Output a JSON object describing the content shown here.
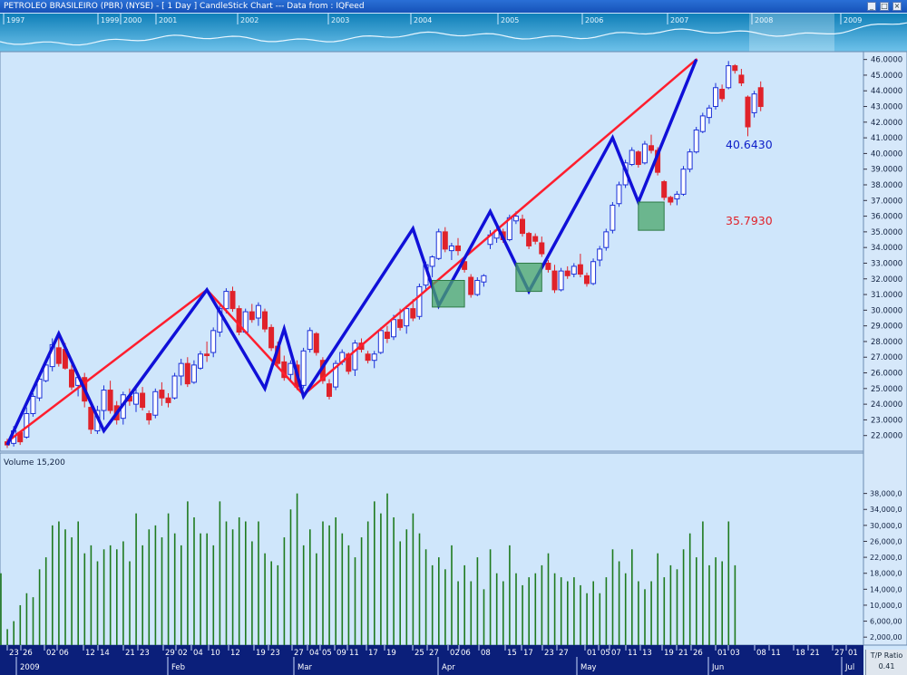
{
  "window": {
    "title": "PETROLEO BRASILEIRO (PBR) (NYSE)  -  [ 1 Day ] CandleStick Chart --- Data from : IQFeed",
    "buttons": [
      "_",
      "□",
      "×"
    ]
  },
  "overview": {
    "year_labels": [
      "1997",
      "1999",
      "2000",
      "2001",
      "2002",
      "2003",
      "2004",
      "2005",
      "2006",
      "2007",
      "2008",
      "2009"
    ],
    "colors": {
      "band_top": "#0f7fb8",
      "band_bottom": "#6fc2ea",
      "line": "#e8f6ff"
    }
  },
  "chart_data": [
    {
      "type": "candlestick",
      "title": "",
      "ylim": [
        21.0,
        46.5
      ],
      "y_ticks": [
        "22.0000",
        "23.0000",
        "24.0000",
        "25.0000",
        "26.0000",
        "27.0000",
        "28.0000",
        "29.0000",
        "30.0000",
        "31.0000",
        "32.0000",
        "33.0000",
        "34.0000",
        "35.0000",
        "36.0000",
        "37.0000",
        "38.0000",
        "39.0000",
        "40.0000",
        "41.0000",
        "42.0000",
        "43.0000",
        "44.0000",
        "45.0000",
        "46.0000"
      ],
      "candles": [
        [
          21.6,
          21.8,
          21.2,
          21.4
        ],
        [
          21.5,
          22.6,
          21.3,
          22.3
        ],
        [
          22.2,
          22.3,
          21.4,
          21.6
        ],
        [
          21.9,
          23.8,
          21.8,
          23.4
        ],
        [
          23.4,
          24.7,
          23.2,
          24.5
        ],
        [
          24.4,
          25.8,
          24.2,
          25.6
        ],
        [
          25.5,
          26.8,
          25.4,
          26.5
        ],
        [
          26.4,
          28.2,
          26.1,
          27.8
        ],
        [
          27.6,
          28.3,
          26.4,
          26.6
        ],
        [
          27.5,
          27.9,
          26.2,
          26.3
        ],
        [
          26.2,
          26.8,
          24.9,
          25.1
        ],
        [
          25.2,
          25.9,
          24.5,
          25.7
        ],
        [
          25.7,
          26.0,
          23.8,
          24.2
        ],
        [
          23.8,
          24.2,
          22.1,
          22.4
        ],
        [
          22.3,
          23.9,
          22.1,
          23.6
        ],
        [
          23.6,
          25.2,
          23.0,
          24.9
        ],
        [
          24.9,
          25.5,
          23.4,
          23.6
        ],
        [
          23.9,
          24.2,
          22.7,
          23.0
        ],
        [
          23.1,
          24.8,
          22.7,
          24.6
        ],
        [
          24.5,
          25.0,
          23.9,
          24.2
        ],
        [
          24.0,
          25.1,
          23.5,
          24.7
        ],
        [
          24.7,
          25.1,
          23.6,
          23.8
        ],
        [
          23.4,
          23.6,
          22.7,
          23.0
        ],
        [
          23.3,
          25.0,
          23.1,
          24.8
        ],
        [
          24.9,
          25.4,
          23.9,
          24.4
        ],
        [
          24.4,
          24.7,
          23.8,
          24.1
        ],
        [
          24.4,
          26.0,
          24.3,
          25.8
        ],
        [
          25.8,
          26.9,
          25.2,
          26.6
        ],
        [
          26.6,
          27.0,
          25.1,
          25.3
        ],
        [
          25.4,
          26.8,
          25.3,
          26.5
        ],
        [
          26.3,
          27.4,
          26.2,
          27.2
        ],
        [
          27.2,
          28.0,
          26.7,
          27.1
        ],
        [
          27.3,
          28.9,
          27.0,
          28.7
        ],
        [
          28.6,
          30.3,
          28.3,
          30.1
        ],
        [
          30.1,
          31.4,
          29.8,
          31.2
        ],
        [
          31.2,
          31.5,
          29.9,
          30.1
        ],
        [
          30.1,
          30.3,
          28.4,
          28.6
        ],
        [
          28.6,
          30.1,
          28.5,
          29.9
        ],
        [
          29.9,
          30.4,
          29.2,
          29.4
        ],
        [
          29.5,
          30.5,
          29.0,
          30.3
        ],
        [
          29.9,
          30.1,
          28.6,
          28.8
        ],
        [
          28.9,
          29.1,
          27.4,
          27.6
        ],
        [
          27.7,
          28.0,
          26.4,
          26.6
        ],
        [
          26.7,
          27.1,
          25.5,
          25.7
        ],
        [
          25.9,
          26.8,
          25.4,
          26.6
        ],
        [
          26.5,
          26.8,
          24.9,
          25.1
        ],
        [
          25.2,
          27.6,
          25.0,
          27.4
        ],
        [
          27.5,
          28.9,
          27.3,
          28.7
        ],
        [
          28.5,
          28.6,
          27.1,
          27.3
        ],
        [
          26.8,
          27.0,
          25.3,
          25.5
        ],
        [
          25.3,
          25.6,
          24.3,
          24.5
        ],
        [
          25.1,
          26.8,
          24.9,
          26.6
        ],
        [
          26.7,
          27.5,
          26.5,
          27.3
        ],
        [
          27.2,
          27.3,
          25.9,
          26.1
        ],
        [
          26.2,
          28.1,
          25.8,
          27.9
        ],
        [
          27.9,
          28.2,
          27.3,
          27.5
        ],
        [
          27.2,
          27.4,
          26.6,
          26.8
        ],
        [
          26.8,
          27.4,
          26.3,
          27.2
        ],
        [
          27.3,
          28.9,
          27.2,
          28.7
        ],
        [
          28.6,
          29.0,
          27.9,
          28.2
        ],
        [
          28.3,
          29.7,
          28.1,
          29.4
        ],
        [
          29.4,
          30.1,
          28.7,
          28.9
        ],
        [
          29.0,
          30.3,
          28.5,
          30.1
        ],
        [
          30.1,
          30.7,
          29.3,
          29.5
        ],
        [
          29.6,
          31.7,
          29.4,
          31.5
        ],
        [
          31.6,
          33.1,
          31.3,
          32.9
        ],
        [
          32.8,
          33.5,
          32.1,
          33.4
        ],
        [
          33.3,
          35.2,
          33.2,
          35.0
        ],
        [
          35.0,
          35.3,
          33.7,
          33.9
        ],
        [
          33.8,
          34.3,
          33.2,
          34.1
        ],
        [
          34.1,
          34.6,
          33.5,
          33.8
        ],
        [
          33.1,
          33.3,
          32.4,
          32.6
        ],
        [
          32.1,
          32.3,
          30.8,
          31.0
        ],
        [
          31.0,
          32.1,
          30.9,
          31.9
        ],
        [
          31.8,
          32.3,
          31.5,
          32.2
        ],
        [
          34.2,
          35.1,
          33.9,
          34.8
        ],
        [
          34.6,
          35.3,
          34.3,
          35.1
        ],
        [
          35.0,
          35.2,
          34.3,
          34.5
        ],
        [
          34.5,
          36.1,
          34.4,
          35.9
        ],
        [
          35.7,
          36.3,
          35.5,
          36.0
        ],
        [
          35.8,
          36.1,
          34.7,
          34.9
        ],
        [
          34.9,
          35.0,
          33.9,
          34.1
        ],
        [
          34.7,
          34.9,
          34.2,
          34.4
        ],
        [
          34.3,
          34.7,
          33.4,
          33.6
        ],
        [
          33.0,
          33.2,
          32.4,
          32.6
        ],
        [
          32.5,
          32.9,
          31.1,
          31.3
        ],
        [
          31.3,
          32.7,
          31.2,
          32.5
        ],
        [
          32.5,
          32.8,
          32.0,
          32.2
        ],
        [
          32.3,
          33.0,
          32.1,
          32.8
        ],
        [
          32.9,
          33.6,
          32.1,
          32.3
        ],
        [
          32.2,
          32.4,
          31.5,
          31.7
        ],
        [
          31.7,
          33.3,
          31.6,
          33.1
        ],
        [
          33.2,
          34.1,
          32.8,
          33.9
        ],
        [
          34.0,
          35.2,
          33.8,
          35.0
        ],
        [
          35.1,
          36.9,
          34.9,
          36.7
        ],
        [
          36.8,
          38.2,
          36.6,
          38.0
        ],
        [
          38.0,
          39.6,
          37.8,
          39.4
        ],
        [
          39.3,
          40.4,
          39.2,
          40.2
        ],
        [
          40.1,
          40.2,
          39.1,
          39.3
        ],
        [
          39.4,
          40.8,
          39.3,
          40.6
        ],
        [
          40.5,
          41.2,
          40.0,
          40.2
        ],
        [
          40.2,
          40.4,
          38.6,
          38.8
        ],
        [
          38.2,
          38.3,
          37.0,
          37.2
        ],
        [
          37.2,
          37.3,
          36.7,
          36.9
        ],
        [
          37.1,
          37.6,
          36.7,
          37.4
        ],
        [
          37.4,
          39.2,
          37.3,
          39.0
        ],
        [
          39.0,
          40.3,
          38.8,
          40.1
        ],
        [
          40.1,
          41.7,
          40.0,
          41.5
        ],
        [
          41.4,
          42.6,
          41.3,
          42.4
        ],
        [
          42.3,
          43.1,
          41.9,
          42.9
        ],
        [
          43.0,
          44.5,
          42.8,
          44.2
        ],
        [
          44.1,
          44.4,
          43.3,
          43.5
        ],
        [
          44.2,
          45.9,
          44.1,
          45.6
        ],
        [
          45.6,
          45.7,
          45.1,
          45.3
        ],
        [
          45.0,
          45.4,
          44.3,
          44.5
        ],
        [
          43.6,
          43.7,
          41.1,
          41.7
        ],
        [
          42.6,
          44.0,
          42.3,
          43.8
        ],
        [
          44.2,
          44.6,
          42.7,
          43.0
        ]
      ],
      "colors": {
        "up": "#1a2fd8",
        "down": "#e0222a",
        "up_fill": "#ffffff"
      },
      "zigzag": {
        "color": "#1010d8",
        "points": [
          [
            0,
            21.4
          ],
          [
            8,
            28.5
          ],
          [
            15,
            22.3
          ],
          [
            31,
            31.3
          ],
          [
            40,
            25.0
          ],
          [
            43,
            28.8
          ],
          [
            46,
            24.5
          ],
          [
            63,
            35.2
          ],
          [
            67,
            30.3
          ],
          [
            75,
            36.3
          ],
          [
            81,
            31.2
          ],
          [
            94,
            41.0
          ],
          [
            98,
            36.9
          ],
          [
            107,
            46.0
          ]
        ]
      },
      "trendlines": {
        "color": "#ff1e2e",
        "segments": [
          [
            [
              0,
              21.6
            ],
            [
              31,
              31.3
            ]
          ],
          [
            [
              31,
              31.3
            ],
            [
              46,
              24.6
            ]
          ],
          [
            [
              46,
              24.6
            ],
            [
              107,
              46.0
            ]
          ]
        ]
      },
      "boxes": [
        {
          "x0": 66,
          "x1": 71,
          "y0": 30.2,
          "y1": 31.9
        },
        {
          "x0": 79,
          "x1": 83,
          "y0": 31.2,
          "y1": 33.0
        },
        {
          "x0": 98,
          "x1": 102,
          "y0": 35.1,
          "y1": 36.9
        }
      ],
      "annotations": [
        {
          "text": "40.6430",
          "color": "#0c1ec8",
          "price": 40.6
        },
        {
          "text": "35.7930",
          "color": "#e0222a",
          "price": 35.75
        }
      ]
    },
    {
      "type": "bar",
      "title": "Volume 15,200",
      "ylim": [
        0,
        42000
      ],
      "y_ticks": [
        "2,000,00",
        "6,000,00",
        "10,000,0",
        "14,000,0",
        "18,000,0",
        "22,000,0",
        "26,000,0",
        "30,000,0",
        "34,000,0",
        "38,000,0"
      ],
      "color": "#1e7a1e",
      "values": [
        18000,
        4000,
        6000,
        10000,
        13000,
        12000,
        19000,
        22000,
        30000,
        31000,
        29000,
        27000,
        31000,
        23000,
        25000,
        21000,
        24000,
        25000,
        24000,
        26000,
        21000,
        33000,
        25000,
        29000,
        30000,
        27000,
        33000,
        28000,
        25000,
        36000,
        32000,
        28000,
        28000,
        25000,
        36000,
        31000,
        29000,
        32000,
        31000,
        26000,
        31000,
        23000,
        21000,
        20000,
        27000,
        34000,
        38000,
        25000,
        29000,
        23000,
        31000,
        30000,
        32000,
        28000,
        25000,
        22000,
        27000,
        31000,
        36000,
        33000,
        38000,
        32000,
        26000,
        29000,
        33000,
        28000,
        24000,
        20000,
        22000,
        19000,
        25000,
        16000,
        20000,
        16000,
        22000,
        14000,
        24000,
        18000,
        16000,
        25000,
        18000,
        15000,
        17000,
        18000,
        20000,
        23000,
        18000,
        17000,
        16000,
        17000,
        15000,
        13000,
        16000,
        13000,
        17000,
        24000,
        21000,
        18000,
        24000,
        16000,
        14000,
        16000,
        23000,
        17000,
        20000,
        19000,
        24000,
        28000,
        22000,
        31000,
        20000,
        22000,
        21000,
        31000,
        20000
      ]
    }
  ],
  "x_axis": {
    "day_labels": [
      "23",
      "26",
      "02",
      "06",
      "12",
      "14",
      "21",
      "23",
      "29",
      "02",
      "04",
      "10",
      "12",
      "19",
      "23",
      "27",
      "04",
      "05",
      "09",
      "11",
      "17",
      "19",
      "25",
      "27",
      "02",
      "06",
      "08",
      "15",
      "17",
      "23",
      "27",
      "01",
      "05",
      "07",
      "11",
      "13",
      "19",
      "21",
      "26",
      "01",
      "03",
      "08",
      "11",
      "18",
      "21",
      "27",
      "01"
    ],
    "month_labels": [
      "2009",
      "Feb",
      "Mar",
      "Apr",
      "May",
      "Jun",
      "Jul"
    ]
  },
  "tp_ratio": {
    "label": "T/P Ratio",
    "value": "0.41"
  }
}
